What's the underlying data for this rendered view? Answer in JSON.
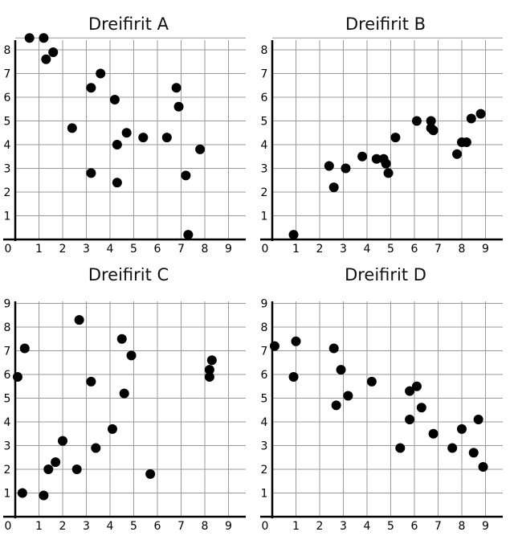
{
  "chart_data": [
    {
      "type": "scatter",
      "title": "Dreifirit A",
      "xlim": [
        0,
        9
      ],
      "ylim": [
        0,
        8
      ],
      "xticks": [
        "0",
        "1",
        "2",
        "3",
        "4",
        "5",
        "6",
        "7",
        "8",
        "9"
      ],
      "yticks": [
        "1",
        "2",
        "3",
        "4",
        "5",
        "6",
        "7",
        "8"
      ],
      "grid": true,
      "point_color": "#000000",
      "x": [
        0.6,
        1.2,
        1.3,
        1.6,
        2.4,
        3.2,
        3.2,
        3.6,
        4.2,
        4.3,
        4.3,
        4.7,
        5.4,
        6.4,
        6.8,
        6.9,
        7.2,
        7.3,
        7.8
      ],
      "y": [
        8.5,
        8.5,
        7.6,
        7.9,
        4.7,
        6.4,
        2.8,
        7.0,
        5.9,
        4.0,
        2.4,
        4.5,
        4.3,
        4.3,
        6.4,
        5.6,
        2.7,
        0.2,
        3.8
      ]
    },
    {
      "type": "scatter",
      "title": "Dreifirit B",
      "xlim": [
        0,
        9
      ],
      "ylim": [
        0,
        8
      ],
      "xticks": [
        "0",
        "1",
        "2",
        "3",
        "4",
        "5",
        "6",
        "7",
        "8",
        "9"
      ],
      "yticks": [
        "1",
        "2",
        "3",
        "4",
        "5",
        "6",
        "7",
        "8"
      ],
      "grid": true,
      "point_color": "#000000",
      "x": [
        0.9,
        2.4,
        2.6,
        3.1,
        3.8,
        4.4,
        4.7,
        4.8,
        4.9,
        5.2,
        6.1,
        6.7,
        6.7,
        6.8,
        7.8,
        8.0,
        8.2,
        8.4,
        8.8
      ],
      "y": [
        0.2,
        3.1,
        2.2,
        3.0,
        3.5,
        3.4,
        3.4,
        3.2,
        2.8,
        4.3,
        5.0,
        5.0,
        4.7,
        4.6,
        3.6,
        4.1,
        4.1,
        5.1,
        5.3
      ]
    },
    {
      "type": "scatter",
      "title": "Dreifirit C",
      "xlim": [
        0,
        9
      ],
      "ylim": [
        0,
        9
      ],
      "xticks": [
        "0",
        "1",
        "2",
        "3",
        "4",
        "5",
        "6",
        "7",
        "8",
        "9"
      ],
      "yticks": [
        "1",
        "2",
        "3",
        "4",
        "5",
        "6",
        "7",
        "8",
        "9"
      ],
      "grid": true,
      "point_color": "#000000",
      "x": [
        0.1,
        0.3,
        0.4,
        1.2,
        1.4,
        1.7,
        2.0,
        2.6,
        2.7,
        3.2,
        3.4,
        4.1,
        4.5,
        4.6,
        4.9,
        5.7,
        8.2,
        8.2,
        8.3
      ],
      "y": [
        5.9,
        1.0,
        7.1,
        0.9,
        2.0,
        2.3,
        3.2,
        2.0,
        8.3,
        5.7,
        2.9,
        3.7,
        7.5,
        5.2,
        6.8,
        1.8,
        5.9,
        6.2,
        6.6
      ]
    },
    {
      "type": "scatter",
      "title": "Dreifirit D",
      "xlim": [
        0,
        9
      ],
      "ylim": [
        0,
        9
      ],
      "xticks": [
        "0",
        "1",
        "2",
        "3",
        "4",
        "5",
        "6",
        "7",
        "8",
        "9"
      ],
      "yticks": [
        "1",
        "2",
        "3",
        "4",
        "5",
        "6",
        "7",
        "8",
        "9"
      ],
      "grid": true,
      "point_color": "#000000",
      "x": [
        0.1,
        0.9,
        1.0,
        2.6,
        2.7,
        2.9,
        3.2,
        4.2,
        5.4,
        5.8,
        5.8,
        6.1,
        6.3,
        6.8,
        7.6,
        8.0,
        8.5,
        8.7,
        8.9
      ],
      "y": [
        7.2,
        5.9,
        7.4,
        7.1,
        4.7,
        6.2,
        5.1,
        5.7,
        2.9,
        5.3,
        4.1,
        5.5,
        4.6,
        3.5,
        2.9,
        3.7,
        2.7,
        4.1,
        2.1
      ]
    }
  ]
}
